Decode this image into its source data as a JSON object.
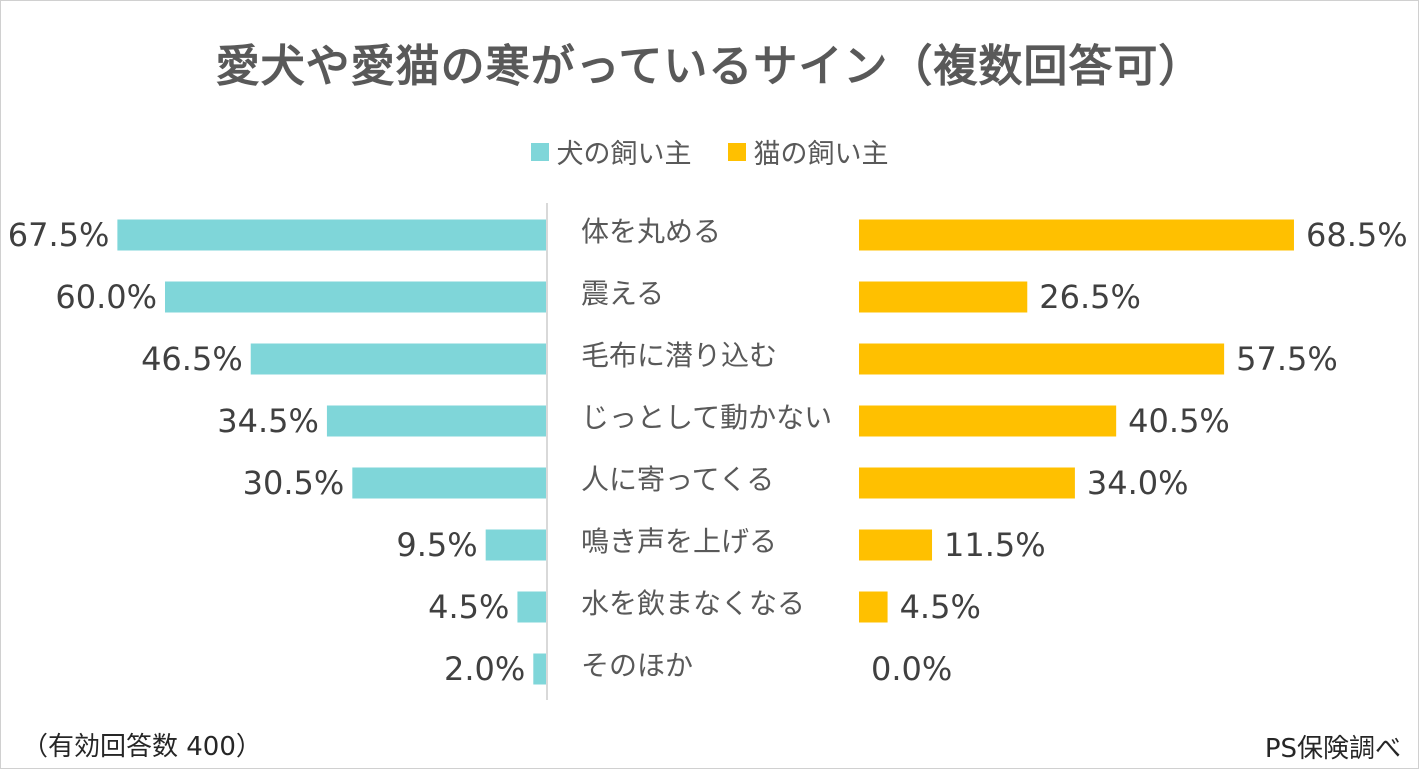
{
  "title": "愛犬や愛猫の寒がっているサイン（複数回答可）",
  "legend": [
    {
      "name": "犬の飼い主",
      "color": "#7fd6d9"
    },
    {
      "name": "猫の飼い主",
      "color": "#ffc000"
    }
  ],
  "footnote_left": "（有効回答数 400）",
  "footnote_right": "PS保険調べ",
  "chart_data": {
    "type": "bar",
    "orientation": "horizontal-butterfly",
    "categories": [
      "体を丸める",
      "震える",
      "毛布に潜り込む",
      "じっとして動かない",
      "人に寄ってくる",
      "鳴き声を上げる",
      "水を飲まなくなる",
      "そのほか"
    ],
    "series": [
      {
        "name": "犬の飼い主",
        "color": "#7fd6d9",
        "values": [
          67.5,
          60.0,
          46.5,
          34.5,
          30.5,
          9.5,
          4.5,
          2.0
        ],
        "labels": [
          "67.5%",
          "60.0%",
          "46.5%",
          "34.5%",
          "30.5%",
          "9.5%",
          "4.5%",
          "2.0%"
        ]
      },
      {
        "name": "猫の飼い主",
        "color": "#ffc000",
        "values": [
          68.5,
          26.5,
          57.5,
          40.5,
          34.0,
          11.5,
          4.5,
          0.0
        ],
        "labels": [
          "68.5%",
          "26.5%",
          "57.5%",
          "40.5%",
          "34.0%",
          "11.5%",
          "4.5%",
          "0.0%"
        ]
      }
    ],
    "unit": "%",
    "xlim": [
      0,
      70
    ],
    "legend_position": "top"
  }
}
